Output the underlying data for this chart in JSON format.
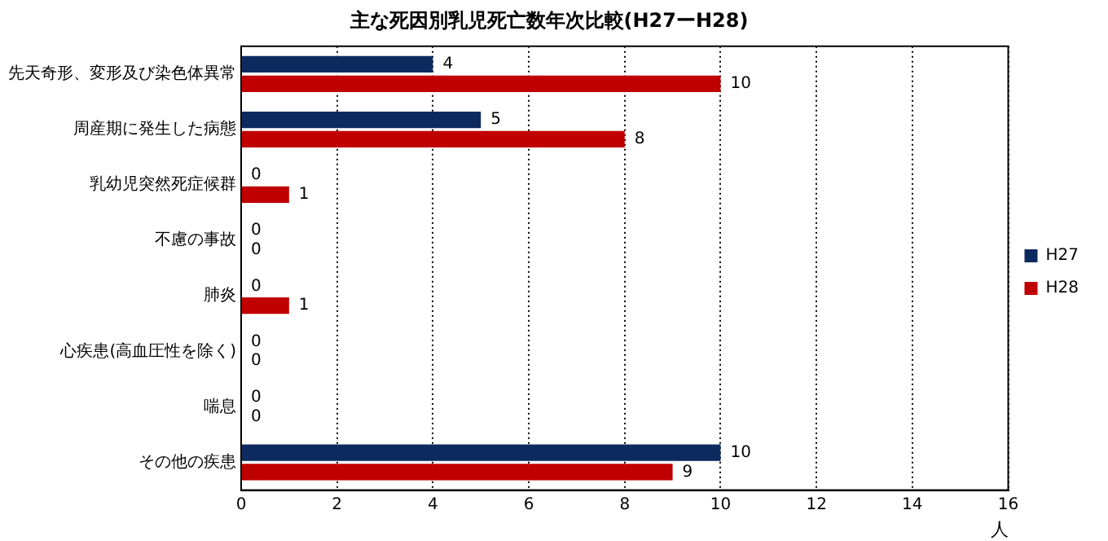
{
  "chart_data": {
    "type": "bar",
    "orientation": "horizontal",
    "title": "主な死因別乳児死亡数年次比較(H27ーH28)",
    "xlabel": "人",
    "categories": [
      "先天奇形、変形及び染色体異常",
      "周産期に発生した病態",
      "乳幼児突然死症候群",
      "不慮の事故",
      "肺炎",
      "心疾患(高血圧性を除く)",
      "喘息",
      "その他の疾患"
    ],
    "series": [
      {
        "name": "H27",
        "color": "#0d2a5e",
        "values": [
          4,
          5,
          0,
          0,
          0,
          0,
          0,
          10
        ]
      },
      {
        "name": "H28",
        "color": "#c00000",
        "values": [
          10,
          8,
          1,
          0,
          1,
          0,
          0,
          9
        ]
      }
    ],
    "xlim": [
      0,
      16
    ],
    "xticks": [
      0,
      2,
      4,
      6,
      8,
      10,
      12,
      14,
      16
    ],
    "grid": "x",
    "legend": "right",
    "data_labels": true
  }
}
